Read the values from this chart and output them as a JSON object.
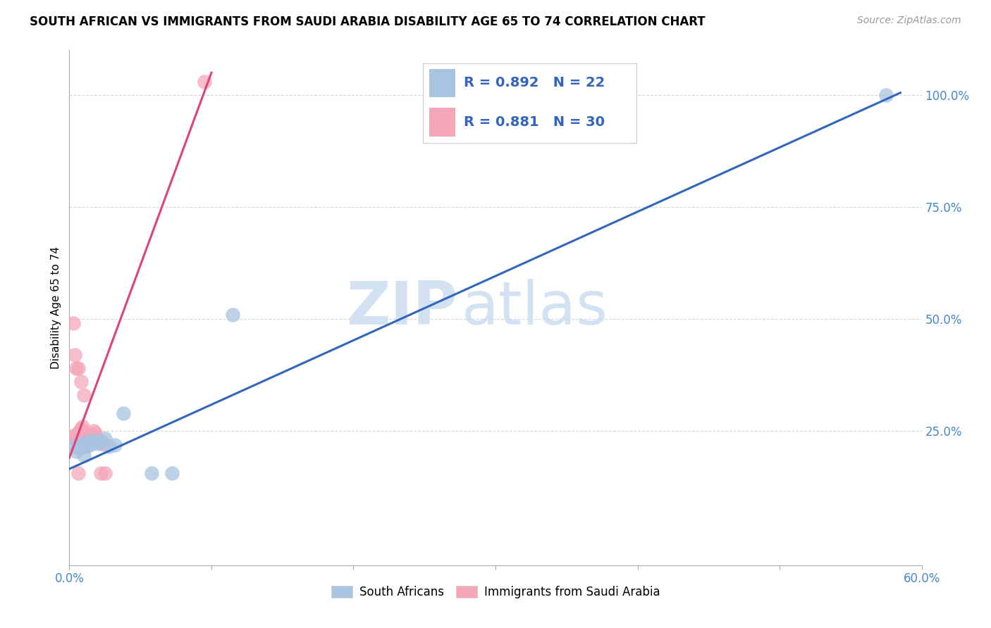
{
  "title": "SOUTH AFRICAN VS IMMIGRANTS FROM SAUDI ARABIA DISABILITY AGE 65 TO 74 CORRELATION CHART",
  "source": "Source: ZipAtlas.com",
  "ylabel": "Disability Age 65 to 74",
  "xlim": [
    0.0,
    0.6
  ],
  "ylim": [
    -0.05,
    1.1
  ],
  "xticks": [
    0.0,
    0.1,
    0.2,
    0.3,
    0.4,
    0.5,
    0.6
  ],
  "xtick_labels": [
    "0.0%",
    "",
    "",
    "",
    "",
    "",
    "60.0%"
  ],
  "watermark_zip": "ZIP",
  "watermark_atlas": "atlas",
  "blue_R": "0.892",
  "blue_N": "22",
  "pink_R": "0.881",
  "pink_N": "30",
  "blue_color": "#a8c4e0",
  "pink_color": "#f4a7b9",
  "blue_line_color": "#3366bb",
  "pink_line_color": "#dd4477",
  "legend_label_blue": "South Africans",
  "legend_label_pink": "Immigrants from Saudi Arabia",
  "blue_scatter_x": [
    0.003,
    0.005,
    0.007,
    0.008,
    0.009,
    0.01,
    0.011,
    0.012,
    0.013,
    0.015,
    0.016,
    0.018,
    0.02,
    0.022,
    0.025,
    0.028,
    0.032,
    0.038,
    0.058,
    0.072,
    0.115,
    0.575
  ],
  "blue_scatter_y": [
    0.215,
    0.205,
    0.21,
    0.22,
    0.215,
    0.195,
    0.225,
    0.215,
    0.218,
    0.22,
    0.23,
    0.225,
    0.222,
    0.228,
    0.232,
    0.215,
    0.218,
    0.29,
    0.155,
    0.155,
    0.51,
    1.0
  ],
  "pink_scatter_x": [
    0.003,
    0.004,
    0.005,
    0.006,
    0.007,
    0.008,
    0.009,
    0.01,
    0.011,
    0.012,
    0.013,
    0.014,
    0.015,
    0.016,
    0.017,
    0.018,
    0.019,
    0.02,
    0.022,
    0.024,
    0.006,
    0.008,
    0.01,
    0.003,
    0.004,
    0.005,
    0.006,
    0.022,
    0.025,
    0.095
  ],
  "pink_scatter_y": [
    0.235,
    0.24,
    0.23,
    0.245,
    0.25,
    0.255,
    0.26,
    0.245,
    0.235,
    0.24,
    0.23,
    0.225,
    0.235,
    0.24,
    0.25,
    0.245,
    0.235,
    0.23,
    0.225,
    0.22,
    0.39,
    0.36,
    0.33,
    0.49,
    0.42,
    0.39,
    0.155,
    0.155,
    0.155,
    1.03
  ],
  "blue_line_x": [
    0.0,
    0.585
  ],
  "blue_line_y": [
    0.165,
    1.005
  ],
  "pink_line_x": [
    0.0,
    0.1
  ],
  "pink_line_y": [
    0.19,
    1.05
  ],
  "background_color": "#ffffff",
  "grid_color": "#cccccc",
  "ytick_right_positions": [
    0.25,
    0.5,
    0.75,
    1.0
  ],
  "ytick_right_labels": [
    "25.0%",
    "50.0%",
    "75.0%",
    "100.0%"
  ],
  "title_fontsize": 12,
  "axis_label_fontsize": 11
}
